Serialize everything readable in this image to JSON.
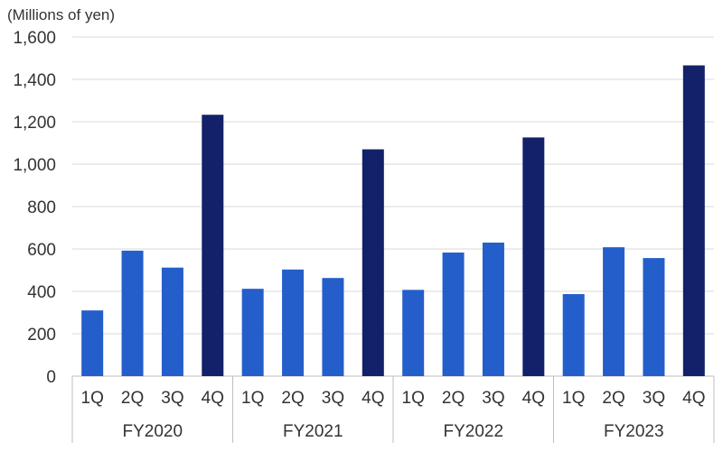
{
  "chart_data": {
    "type": "bar",
    "unit_label": "(Millions of yen)",
    "title": "",
    "xlabel": "",
    "ylabel": "",
    "ylim": [
      0,
      1600
    ],
    "yticks": [
      0,
      200,
      400,
      600,
      800,
      1000,
      1200,
      1400,
      1600
    ],
    "ytick_labels": [
      "0",
      "200",
      "400",
      "600",
      "800",
      "1,000",
      "1,200",
      "1,400",
      "1,600"
    ],
    "grid": true,
    "legend": "none",
    "groups": [
      {
        "label": "FY2020",
        "categories": [
          "1Q",
          "2Q",
          "3Q",
          "4Q"
        ],
        "values": [
          310,
          592,
          512,
          1233
        ]
      },
      {
        "label": "FY2021",
        "categories": [
          "1Q",
          "2Q",
          "3Q",
          "4Q"
        ],
        "values": [
          412,
          503,
          463,
          1070
        ]
      },
      {
        "label": "FY2022",
        "categories": [
          "1Q",
          "2Q",
          "3Q",
          "4Q"
        ],
        "values": [
          407,
          583,
          630,
          1126
        ]
      },
      {
        "label": "FY2023",
        "categories": [
          "1Q",
          "2Q",
          "3Q",
          "4Q"
        ],
        "values": [
          387,
          608,
          557,
          1466
        ]
      }
    ],
    "colors": {
      "q1_q3": "#245ECB",
      "q4": "#13216A",
      "grid": "#D9D9D9",
      "axis": "#BFBFBF"
    }
  }
}
